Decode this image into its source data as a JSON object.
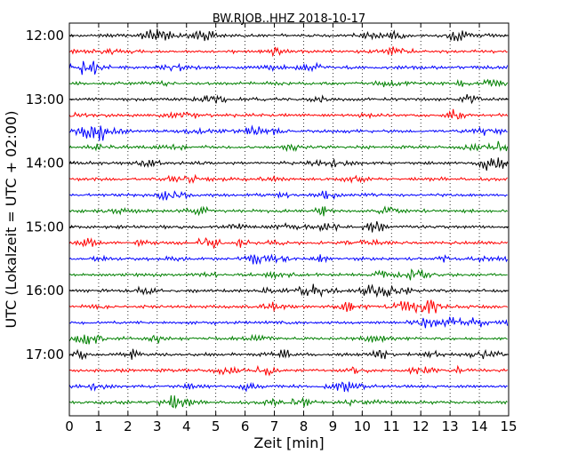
{
  "chart_data": {
    "type": "line",
    "title": "BW.RJOB..HHZ 2018-10-17",
    "xlabel": "Zeit  [min]",
    "ylabel": "UTC (Lokalzeit = UTC + 02:00)",
    "xlim": [
      0,
      15
    ],
    "x_ticks": [
      "0",
      "1",
      "2",
      "3",
      "4",
      "5",
      "6",
      "7",
      "8",
      "9",
      "10",
      "11",
      "12",
      "13",
      "14",
      "15"
    ],
    "y_ticks": [
      "12:00",
      "13:00",
      "14:00",
      "15:00",
      "16:00",
      "17:00"
    ],
    "trace_start": "12:00",
    "trace_interval_min": 15,
    "trace_count": 24,
    "trace_colors": [
      "#000000",
      "#ff0000",
      "#0000ff",
      "#008000"
    ],
    "grid": "vertical dotted lines at each minute"
  }
}
